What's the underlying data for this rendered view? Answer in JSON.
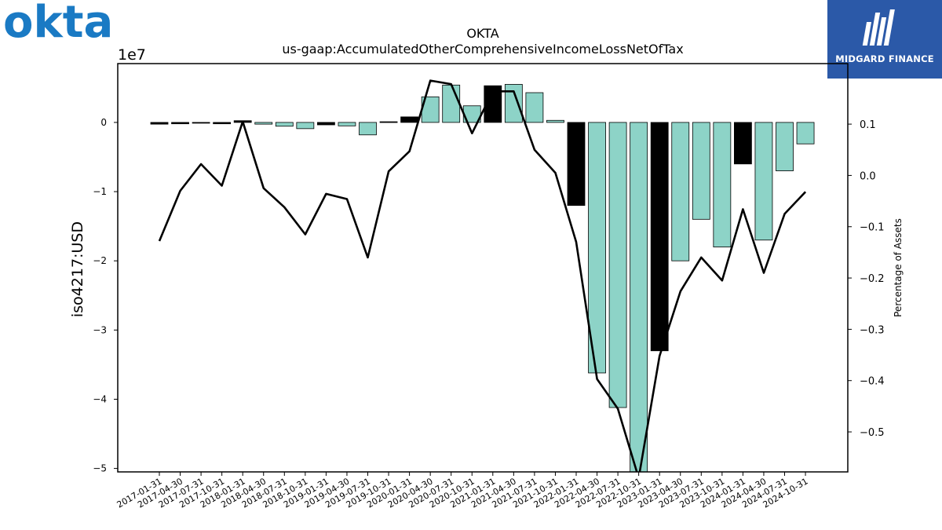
{
  "branding": {
    "company_logo_text": "okta",
    "company_logo_color": "#1a7ac4",
    "publisher_name": "MIDGARD FINANCE",
    "publisher_bg": "#2b59a8"
  },
  "chart_data": {
    "type": "bar",
    "title": "OKTA",
    "subtitle": "us-gaap:AccumulatedOtherComprehensiveIncomeLossNetOfTax",
    "ylabel": "iso4217:USD",
    "y2label": "Percentage of Assets",
    "y_offset_label": "1e7",
    "ylim": [
      -50500000,
      8500000
    ],
    "y2lim": [
      -0.578,
      0.218
    ],
    "y_ticks": [
      0,
      -10000000,
      -20000000,
      -30000000,
      -40000000,
      -50000000
    ],
    "y_tick_labels": [
      "0",
      "−1",
      "−2",
      "−3",
      "−4",
      "−5"
    ],
    "y2_ticks": [
      0.1,
      0.0,
      -0.1,
      -0.2,
      -0.3,
      -0.4,
      -0.5
    ],
    "y2_tick_labels": [
      "0.1",
      "0.0",
      "−0.1",
      "−0.2",
      "−0.3",
      "−0.4",
      "−0.5"
    ],
    "grid": false,
    "categories": [
      "2017-01-31",
      "2017-04-30",
      "2017-07-31",
      "2017-10-31",
      "2018-01-31",
      "2018-04-30",
      "2018-07-31",
      "2018-10-31",
      "2019-01-31",
      "2019-04-30",
      "2019-07-31",
      "2019-10-31",
      "2020-01-31",
      "2020-04-30",
      "2020-07-31",
      "2020-10-31",
      "2021-01-31",
      "2021-04-30",
      "2021-07-31",
      "2021-10-31",
      "2022-01-31",
      "2022-04-30",
      "2022-07-31",
      "2022-10-31",
      "2023-01-31",
      "2023-04-30",
      "2023-07-31",
      "2023-10-31",
      "2024-01-31",
      "2024-04-30",
      "2024-07-31",
      "2024-10-31"
    ],
    "series": [
      {
        "type": "bar",
        "values": [
          -250000,
          -200000,
          -100000,
          -200000,
          250000,
          -250000,
          -550000,
          -900000,
          -350000,
          -500000,
          -1800000,
          100000,
          800000,
          3700000,
          5400000,
          2400000,
          5300000,
          5500000,
          4300000,
          300000,
          -12000000,
          -36200000,
          -41200000,
          -50500000,
          -33000000,
          -20000000,
          -14000000,
          -18000000,
          -6000000,
          -17000000,
          -7000000,
          -3100000
        ],
        "colors": [
          "#000000",
          "#000000",
          "#000000",
          "#000000",
          "#000000",
          "#8dd3c7",
          "#8dd3c7",
          "#8dd3c7",
          "#000000",
          "#8dd3c7",
          "#8dd3c7",
          "#000000",
          "#000000",
          "#8dd3c7",
          "#8dd3c7",
          "#8dd3c7",
          "#000000",
          "#8dd3c7",
          "#8dd3c7",
          "#8dd3c7",
          "#000000",
          "#8dd3c7",
          "#8dd3c7",
          "#8dd3c7",
          "#000000",
          "#8dd3c7",
          "#8dd3c7",
          "#8dd3c7",
          "#000000",
          "#8dd3c7",
          "#8dd3c7",
          "#8dd3c7"
        ]
      },
      {
        "type": "line",
        "axis": "right",
        "color": "#000000",
        "values": [
          -0.128,
          -0.03,
          0.022,
          -0.02,
          0.105,
          -0.025,
          -0.062,
          -0.115,
          -0.036,
          -0.046,
          -0.16,
          0.008,
          0.047,
          0.185,
          0.178,
          0.082,
          0.164,
          0.164,
          0.05,
          0.005,
          -0.13,
          -0.397,
          -0.455,
          -0.59,
          -0.352,
          -0.226,
          -0.16,
          -0.205,
          -0.066,
          -0.19,
          -0.075,
          -0.032
        ]
      }
    ]
  }
}
